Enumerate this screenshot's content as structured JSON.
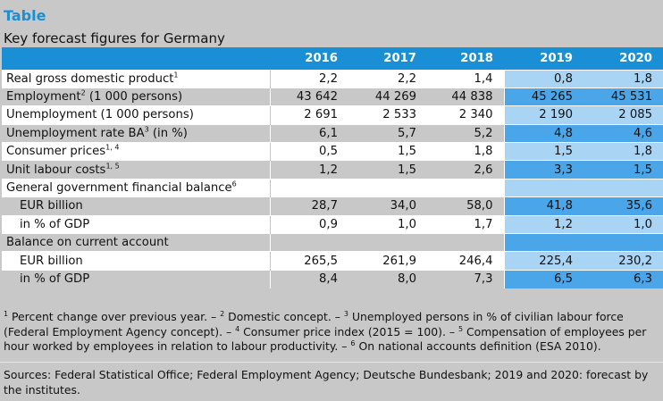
{
  "header": {
    "label": "Table",
    "title": "Key forecast figures for Germany"
  },
  "table": {
    "years": [
      "2016",
      "2017",
      "2018",
      "2019",
      "2020"
    ],
    "rows": [
      {
        "label": "Real gross domestic product",
        "sup": "1",
        "values": [
          "2,2",
          "2,2",
          "1,4",
          "0,8",
          "1,8"
        ],
        "sub": false
      },
      {
        "label": "Employment",
        "sup": "2",
        "label_after": " (1 000 persons)",
        "values": [
          "43 642",
          "44 269",
          "44 838",
          "45 265",
          "45 531"
        ],
        "sub": false
      },
      {
        "label": "Unemployment (1 000 persons)",
        "sup": "",
        "values": [
          "2 691",
          "2 533",
          "2 340",
          "2 190",
          "2 085"
        ],
        "sub": false
      },
      {
        "label": "Unemployment rate BA",
        "sup": "3",
        "label_after": " (in %)",
        "values": [
          "6,1",
          "5,7",
          "5,2",
          "4,8",
          "4,6"
        ],
        "sub": false
      },
      {
        "label": "Consumer prices",
        "sup": "1, 4",
        "values": [
          "0,5",
          "1,5",
          "1,8",
          "1,5",
          "1,8"
        ],
        "sub": false
      },
      {
        "label": "Unit labour costs",
        "sup": "1, 5",
        "values": [
          "1,2",
          "1,5",
          "2,6",
          "3,3",
          "1,5"
        ],
        "sub": false
      },
      {
        "label": "General government financial balance",
        "sup": "6",
        "values": [
          "",
          "",
          "",
          "",
          ""
        ],
        "sub": false
      },
      {
        "label": "EUR billion",
        "sup": "",
        "values": [
          "28,7",
          "34,0",
          "58,0",
          "41,8",
          "35,6"
        ],
        "sub": true
      },
      {
        "label": "in % of GDP",
        "sup": "",
        "values": [
          "0,9",
          "1,0",
          "1,7",
          "1,2",
          "1,0"
        ],
        "sub": true
      },
      {
        "label": "Balance on current account",
        "sup": "",
        "values": [
          "",
          "",
          "",
          "",
          ""
        ],
        "sub": false
      },
      {
        "label": "EUR billion",
        "sup": "",
        "values": [
          "265,5",
          "261,9",
          "246,4",
          "225,4",
          "230,2"
        ],
        "sub": true
      },
      {
        "label": "in % of GDP",
        "sup": "",
        "values": [
          "8,4",
          "8,0",
          "7,3",
          "6,5",
          "6,3"
        ],
        "sub": true
      }
    ]
  },
  "footnotes": [
    {
      "sup": "1",
      "text": " Percent change over previous year. – "
    },
    {
      "sup": "2",
      "text": " Domestic concept. – "
    },
    {
      "sup": "3",
      "text": " Unemployed persons in % of civilian labour force (Federal Employment Agency concept). – "
    },
    {
      "sup": "4",
      "text": " Consumer price index (2015 = 100). – "
    },
    {
      "sup": "5",
      "text": " Compensation of employees per hour worked by employees in relation to labour productivity. – "
    },
    {
      "sup": "6",
      "text": " On national accounts definition (ESA 2010)."
    }
  ],
  "sources": "Sources: Federal Statistical Office; Federal Employment Agency; Deutsche Bundesbank; 2019 and 2020: forecast by the institutes.",
  "colors": {
    "accent": "#1a8fd6",
    "forecast_light": "#aad4f4",
    "forecast_dark": "#4aa6e8",
    "band_gray": "#c8c8c8"
  }
}
